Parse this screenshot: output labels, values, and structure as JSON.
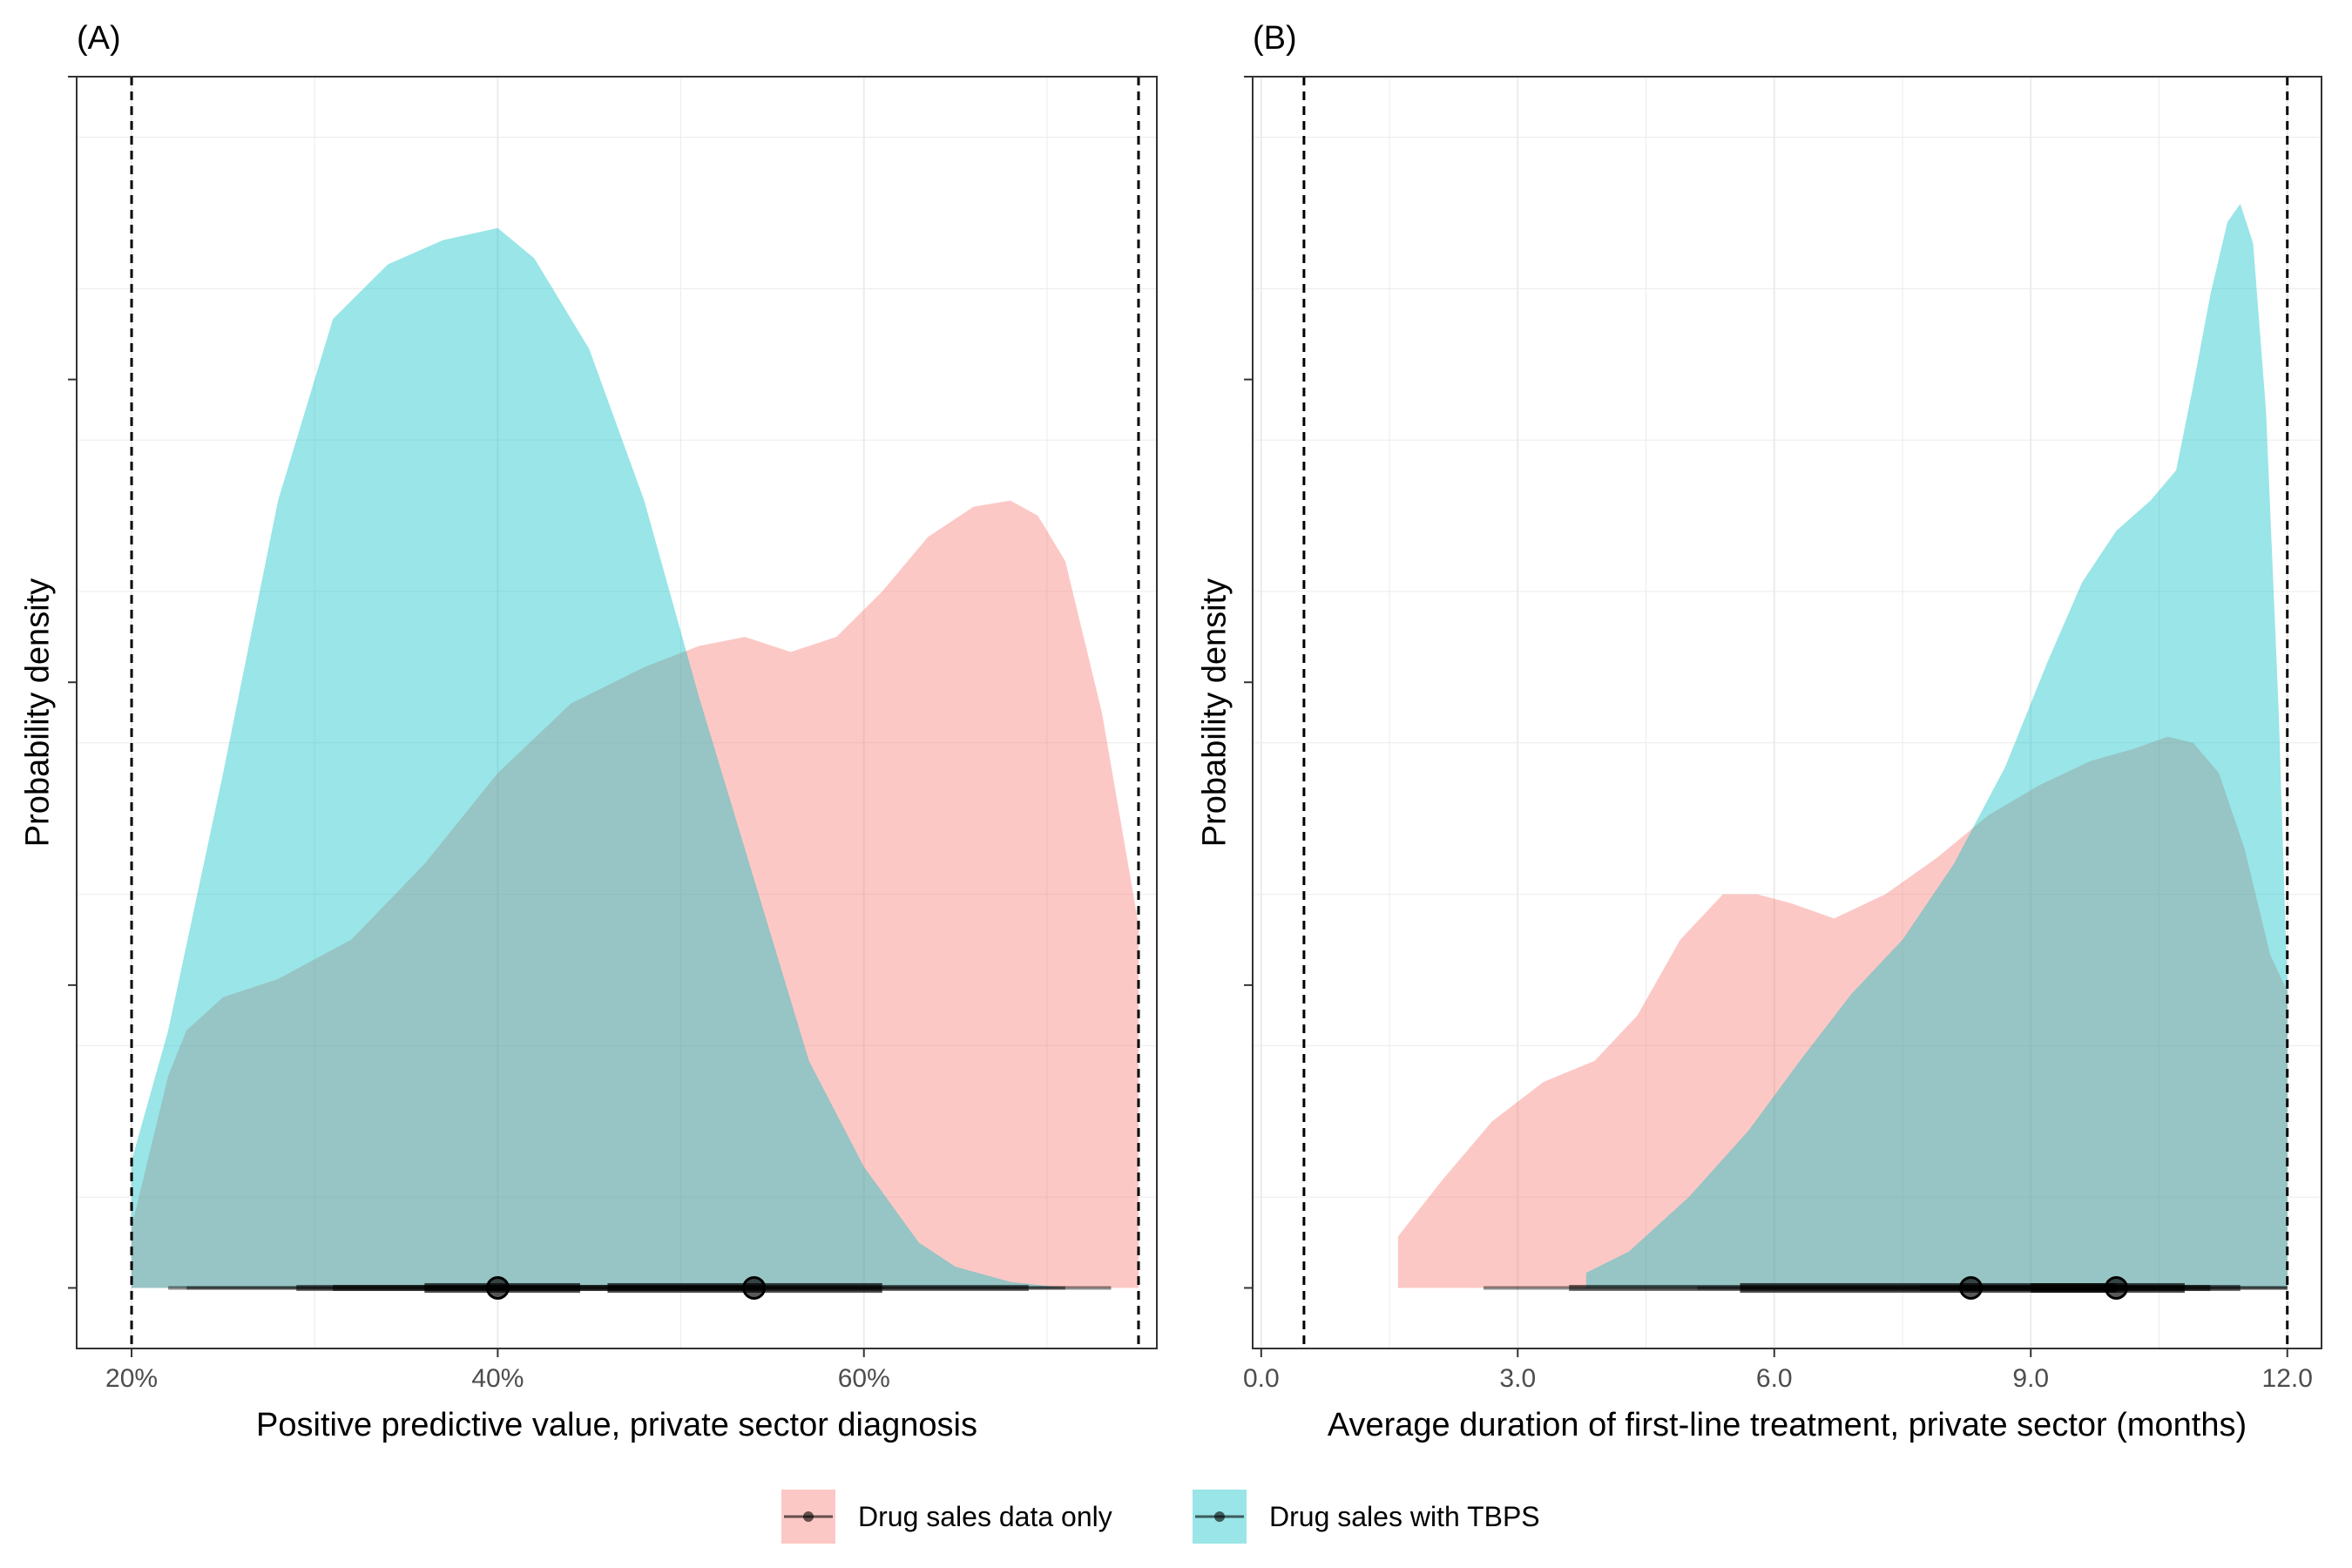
{
  "chart_data": [
    {
      "type": "area",
      "panel_label": "(A)",
      "xlabel": "Positive predictive value, private sector diagnosis",
      "ylabel": "Probability density",
      "xlim": [
        0.17,
        0.76
      ],
      "ylim": [
        -0.2,
        4.0
      ],
      "x_ticks": [
        0.2,
        0.4,
        0.6
      ],
      "x_tick_labels": [
        "20%",
        "40%",
        "60%"
      ],
      "y_ticks": [
        0,
        1,
        2,
        3,
        4
      ],
      "grid": true,
      "reference_lines": [
        0.2,
        0.75
      ],
      "series": [
        {
          "name": "Drug sales data only",
          "color": "#F8766D",
          "density": {
            "x": [
              0.2,
              0.21,
              0.22,
              0.23,
              0.25,
              0.28,
              0.32,
              0.36,
              0.4,
              0.44,
              0.48,
              0.51,
              0.535,
              0.56,
              0.585,
              0.61,
              0.635,
              0.66,
              0.68,
              0.695,
              0.71,
              0.73,
              0.75
            ],
            "y": [
              0.2,
              0.45,
              0.7,
              0.85,
              0.96,
              1.02,
              1.15,
              1.4,
              1.7,
              1.93,
              2.05,
              2.12,
              2.15,
              2.1,
              2.15,
              2.3,
              2.48,
              2.58,
              2.6,
              2.55,
              2.4,
              1.9,
              1.2
            ]
          },
          "median": 0.54,
          "interval_66": [
            0.46,
            0.61
          ],
          "interval_95": [
            0.31,
            0.69
          ],
          "interval_full": [
            0.23,
            0.735
          ]
        },
        {
          "name": "Drug sales with TBPS",
          "color": "#00BFC4",
          "density": {
            "x": [
              0.2,
              0.22,
              0.25,
              0.28,
              0.31,
              0.34,
              0.37,
              0.4,
              0.42,
              0.45,
              0.48,
              0.51,
              0.54,
              0.57,
              0.6,
              0.63,
              0.65,
              0.68,
              0.71
            ],
            "y": [
              0.42,
              0.85,
              1.7,
              2.6,
              3.2,
              3.38,
              3.46,
              3.5,
              3.4,
              3.1,
              2.6,
              1.95,
              1.35,
              0.75,
              0.4,
              0.15,
              0.07,
              0.02,
              0.0
            ]
          },
          "median": 0.4,
          "interval_66": [
            0.36,
            0.445
          ],
          "interval_95": [
            0.29,
            0.535
          ],
          "interval_full": [
            0.22,
            0.71
          ]
        }
      ]
    },
    {
      "type": "area",
      "panel_label": "(B)",
      "xlabel": "Average duration of first-line treatment, private sector (months)",
      "ylabel": "Probability density",
      "xlim": [
        -0.1,
        12.4
      ],
      "ylim": [
        -0.2,
        4.0
      ],
      "x_ticks": [
        0,
        3,
        6,
        9,
        12
      ],
      "x_tick_labels": [
        "0.0",
        "3.0",
        "6.0",
        "9.0",
        "12.0"
      ],
      "y_ticks": [
        0,
        1,
        2,
        3,
        4
      ],
      "grid": true,
      "reference_lines": [
        0.5,
        12.0
      ],
      "series": [
        {
          "name": "Drug sales data only",
          "color": "#F8766D",
          "density": {
            "x": [
              1.6,
              2.1,
              2.7,
              3.3,
              3.9,
              4.4,
              4.9,
              5.4,
              5.8,
              6.2,
              6.7,
              7.3,
              7.9,
              8.5,
              9.1,
              9.7,
              10.2,
              10.6,
              10.9,
              11.2,
              11.5,
              11.8,
              12.0
            ],
            "y": [
              0.17,
              0.35,
              0.55,
              0.68,
              0.75,
              0.9,
              1.15,
              1.3,
              1.3,
              1.27,
              1.22,
              1.3,
              1.42,
              1.56,
              1.66,
              1.74,
              1.78,
              1.82,
              1.8,
              1.7,
              1.45,
              1.1,
              0.98
            ]
          },
          "median": 8.3,
          "interval_66": [
            5.6,
            10.0
          ],
          "interval_95": [
            3.6,
            11.1
          ],
          "interval_full": [
            2.6,
            12.0
          ]
        },
        {
          "name": "Drug sales with TBPS",
          "color": "#00BFC4",
          "density": {
            "x": [
              3.8,
              4.3,
              5.0,
              5.7,
              6.3,
              6.9,
              7.5,
              8.1,
              8.7,
              9.2,
              9.6,
              10.0,
              10.4,
              10.7,
              10.9,
              11.1,
              11.3,
              11.45,
              11.6,
              11.75,
              11.9,
              12.0
            ],
            "y": [
              0.05,
              0.12,
              0.3,
              0.52,
              0.75,
              0.97,
              1.15,
              1.4,
              1.72,
              2.07,
              2.33,
              2.5,
              2.6,
              2.7,
              2.98,
              3.28,
              3.52,
              3.58,
              3.45,
              2.9,
              1.9,
              1.0
            ]
          },
          "median": 10.0,
          "interval_66": [
            9.0,
            10.8
          ],
          "interval_95": [
            7.7,
            11.45
          ],
          "interval_full": [
            5.1,
            12.0
          ]
        }
      ]
    }
  ],
  "legend": {
    "position": "bottom",
    "items": [
      {
        "label": "Drug sales data only",
        "color": "#F8766D"
      },
      {
        "label": "Drug sales with TBPS",
        "color": "#00BFC4"
      }
    ]
  }
}
